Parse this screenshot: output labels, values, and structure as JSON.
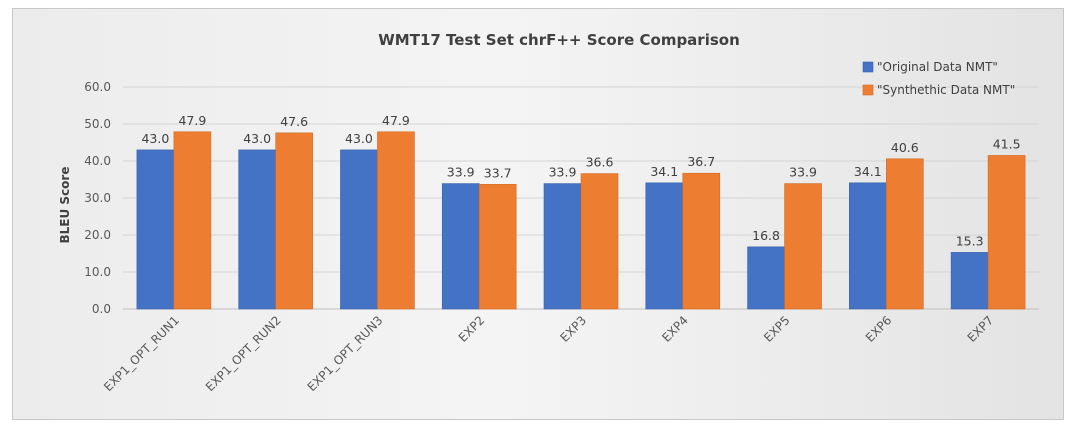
{
  "chart_data": {
    "type": "bar",
    "title": "WMT17 Test Set chrF++ Score Comparison",
    "ylabel": "BLEU Score",
    "xlabel": "",
    "ylim": [
      0,
      60
    ],
    "yticks": [
      "0.0",
      "10.0",
      "20.0",
      "30.0",
      "40.0",
      "50.0",
      "60.0"
    ],
    "grid": true,
    "legend_position": "top-right",
    "categories": [
      "EXP1_OPT_RUN1",
      "EXP1_OPT_RUN2",
      "EXP1_OPT_RUN3",
      "EXP2",
      "EXP3",
      "EXP4",
      "EXP5",
      "EXP6",
      "EXP7"
    ],
    "series": [
      {
        "name": "\"Original Data NMT\"",
        "color": "#4472c4",
        "values": [
          43.0,
          43.0,
          43.0,
          33.9,
          33.9,
          34.1,
          16.8,
          34.1,
          15.3
        ],
        "labels": [
          "43.0",
          "43.0",
          "43.0",
          "33.9",
          "33.9",
          "34.1",
          "16.8",
          "34.1",
          "15.3"
        ]
      },
      {
        "name": "\"Synthethic Data NMT\"",
        "color": "#ed7d31",
        "values": [
          47.9,
          47.6,
          47.9,
          33.7,
          36.6,
          36.7,
          33.9,
          40.6,
          41.5
        ],
        "labels": [
          "47.9",
          "47.6",
          "47.9",
          "33.7",
          "36.6",
          "36.7",
          "33.9",
          "40.6",
          "41.5"
        ]
      }
    ]
  }
}
